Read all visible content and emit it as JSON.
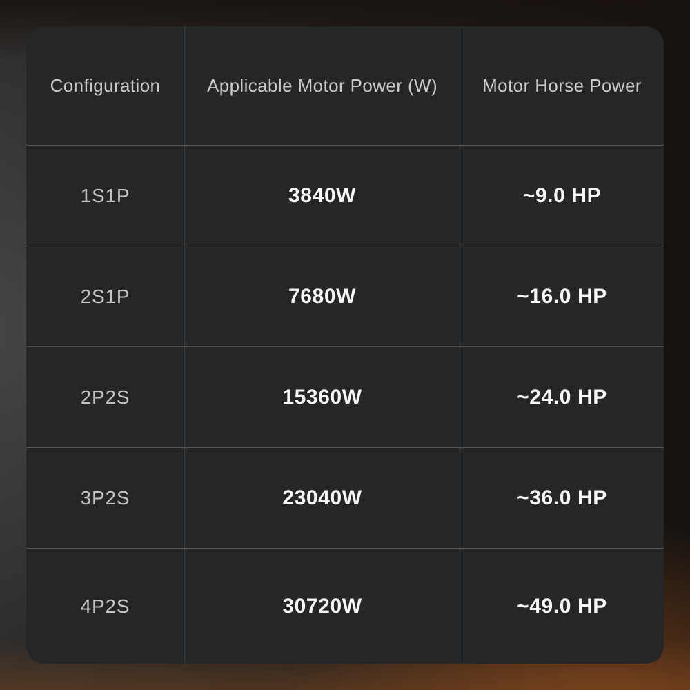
{
  "chart_data": {
    "type": "table",
    "columns": [
      "Configuration",
      "Applicable Motor Power (W)",
      "Motor Horse Power"
    ],
    "rows": [
      [
        "1S1P",
        "3840W",
        "~9.0 HP"
      ],
      [
        "2S1P",
        "7680W",
        "~16.0 HP"
      ],
      [
        "2P2S",
        "15360W",
        "~24.0 HP"
      ],
      [
        "3P2S",
        "23040W",
        "~36.0 HP"
      ],
      [
        "4P2S",
        "30720W",
        "~49.0 HP"
      ]
    ],
    "title": "",
    "legend": "none",
    "grid": "on"
  },
  "colors": {
    "table_bg": "#242628",
    "header_text": "#c9cacb",
    "config_text": "#c3c4c5",
    "value_text": "#f5f6f6",
    "divider_h": "#555657",
    "divider_v": "#3b3e40",
    "glow": "#8c4b1e"
  }
}
